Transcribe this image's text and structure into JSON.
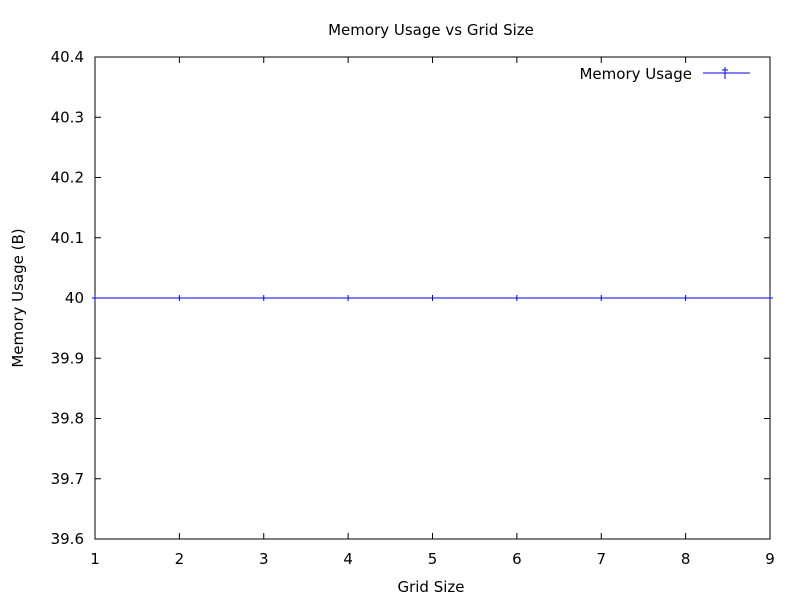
{
  "chart_data": {
    "type": "line",
    "title": "Memory Usage vs Grid Size",
    "xlabel": "Grid Size",
    "ylabel": "Memory Usage (B)",
    "xlim": [
      1,
      9
    ],
    "ylim": [
      39.6,
      40.4
    ],
    "x_ticks": [
      "1",
      "2",
      "3",
      "4",
      "5",
      "6",
      "7",
      "8",
      "9"
    ],
    "y_ticks": [
      "39.6",
      "39.7",
      "39.8",
      "39.9",
      "40",
      "40.1",
      "40.2",
      "40.3",
      "40.4"
    ],
    "grid": false,
    "legend_position": "top-right",
    "series": [
      {
        "name": "Memory Usage",
        "color": "#0000ff",
        "marker": "plus",
        "x": [
          1,
          2,
          3,
          4,
          5,
          6,
          7,
          8,
          9
        ],
        "y": [
          40,
          40,
          40,
          40,
          40,
          40,
          40,
          40,
          40
        ]
      }
    ]
  }
}
